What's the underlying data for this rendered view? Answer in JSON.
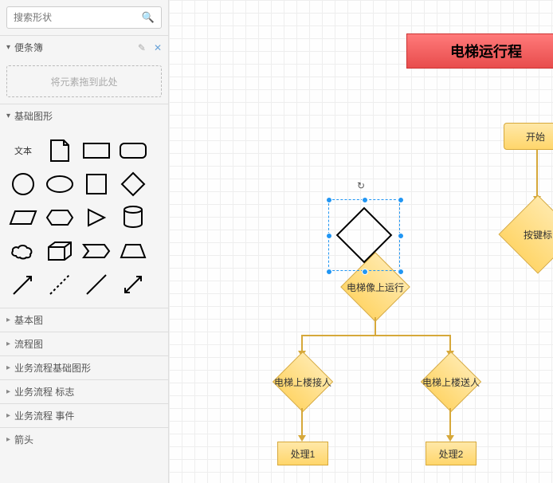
{
  "search": {
    "placeholder": "搜索形状"
  },
  "sidebar": {
    "scratchpad": {
      "title": "便条簿",
      "dropHint": "将元素拖到此处",
      "editIcon": "✎",
      "closeIcon": "✕"
    },
    "basicShapes": {
      "title": "基础图形",
      "textLabel": "文本"
    },
    "collapsed": [
      "基本图",
      "流程图",
      "业务流程基础图形",
      "业务流程 标志",
      "业务流程 事件",
      "箭头"
    ]
  },
  "flowchart": {
    "title": "电梯运行程",
    "titleStyle": {
      "bg1": "#ff7a7a",
      "bg2": "#e84c4c",
      "border": "#c33"
    },
    "nodeStyle": {
      "bg1": "#ffe8a8",
      "bg2": "#ffd66b",
      "border": "#d6a83a"
    },
    "start": "开始",
    "decision1": "按键标",
    "decision2": "电梯像上运行",
    "decision3": "电梯上楼接人",
    "decision4": "电梯上楼送人",
    "proc1": "处理1",
    "proc2": "处理2"
  },
  "selection": {
    "rotateIcon": "↻"
  }
}
